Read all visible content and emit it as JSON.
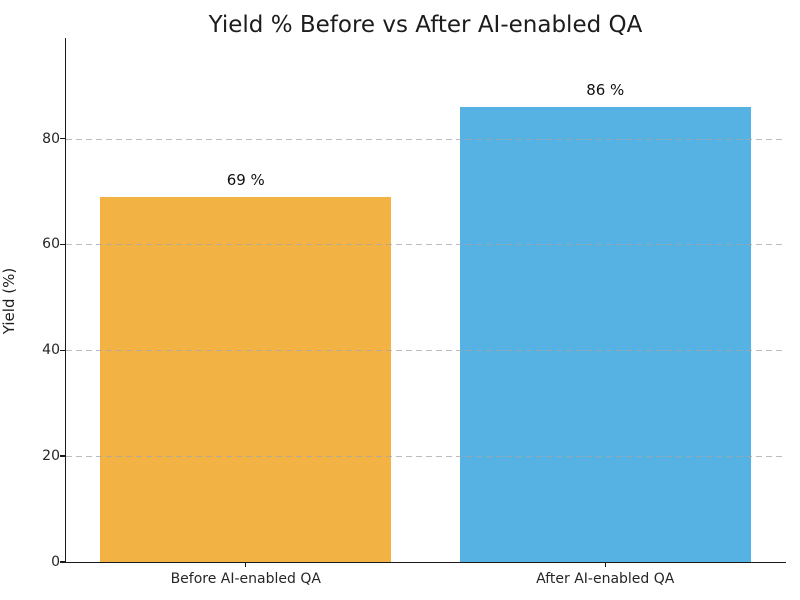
{
  "chart_data": {
    "type": "bar",
    "title": "Yield % Before vs After AI-enabled QA",
    "categories": [
      "Before AI-enabled QA",
      "After AI-enabled QA"
    ],
    "values": [
      69,
      86
    ],
    "bar_value_labels": [
      "69 %",
      "86 %"
    ],
    "bar_colors": [
      "#F2B344",
      "#56B2E3"
    ],
    "xlabel": "",
    "ylabel": "Yield (%)",
    "ylim": [
      0,
      99
    ],
    "yticks": [
      0,
      20,
      40,
      60,
      80
    ],
    "grid": "horizontal dashed gridlines at 20/40/60/80, drawn over bars",
    "gridline_color": "#a5a5a5",
    "axis_color": "#1a1a1a",
    "background_color": "#ffffff",
    "legend": "none",
    "spines": "left and bottom only"
  }
}
